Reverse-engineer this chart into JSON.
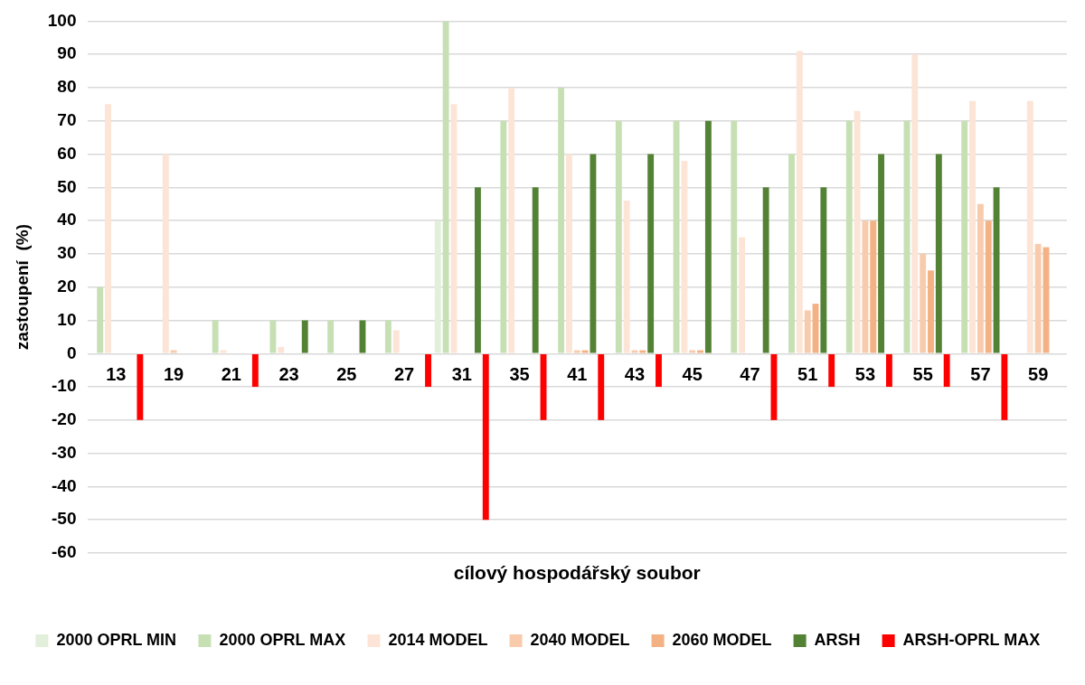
{
  "chart_data": {
    "type": "bar",
    "xlabel": "cílový hospodářský soubor",
    "ylabel": "zastoupení  (%)",
    "categories": [
      "13",
      "19",
      "21",
      "23",
      "25",
      "27",
      "31",
      "35",
      "41",
      "43",
      "45",
      "47",
      "51",
      "53",
      "55",
      "57",
      "59"
    ],
    "series": [
      {
        "name": "2000 OPRL MIN",
        "color": "#e2efda",
        "values": [
          0,
          0,
          0,
          0,
          0,
          0,
          40,
          0,
          0,
          0,
          0,
          0,
          0,
          0,
          0,
          0,
          0
        ]
      },
      {
        "name": "2000 OPRL MAX",
        "color": "#c6e0b4",
        "values": [
          20,
          0,
          10,
          10,
          10,
          10,
          100,
          70,
          80,
          70,
          70,
          70,
          60,
          70,
          70,
          70,
          0
        ]
      },
      {
        "name": "2014 MODEL",
        "color": "#fce4d6",
        "values": [
          75,
          60,
          1,
          2,
          0,
          7,
          75,
          80,
          60,
          46,
          58,
          35,
          91,
          73,
          90,
          76,
          76
        ]
      },
      {
        "name": "2040 MODEL",
        "color": "#f8cbad",
        "values": [
          0,
          1,
          0,
          0,
          0,
          0,
          0,
          0,
          1,
          1,
          1,
          0,
          13,
          40,
          30,
          45,
          33
        ]
      },
      {
        "name": "2060 MODEL",
        "color": "#f4b183",
        "values": [
          0,
          0,
          0,
          0,
          0,
          0,
          0,
          0,
          1,
          1,
          1,
          0,
          15,
          40,
          25,
          40,
          32
        ]
      },
      {
        "name": "ARSH",
        "color": "#548235",
        "values": [
          0,
          0,
          0,
          10,
          10,
          0,
          50,
          50,
          60,
          60,
          70,
          50,
          50,
          60,
          60,
          50,
          0
        ]
      },
      {
        "name": "ARSH-OPRL MAX",
        "color": "#ff0000",
        "values": [
          -20,
          0,
          -10,
          0,
          0,
          -10,
          -50,
          -20,
          -20,
          -10,
          0,
          -20,
          -10,
          -10,
          -10,
          -20,
          0
        ]
      }
    ],
    "ylim": [
      -60,
      100
    ],
    "yticks": [
      -60,
      -50,
      -40,
      -30,
      -20,
      -10,
      0,
      10,
      20,
      30,
      40,
      50,
      60,
      70,
      80,
      90,
      100
    ],
    "grid": "y",
    "legend": "bottom"
  }
}
